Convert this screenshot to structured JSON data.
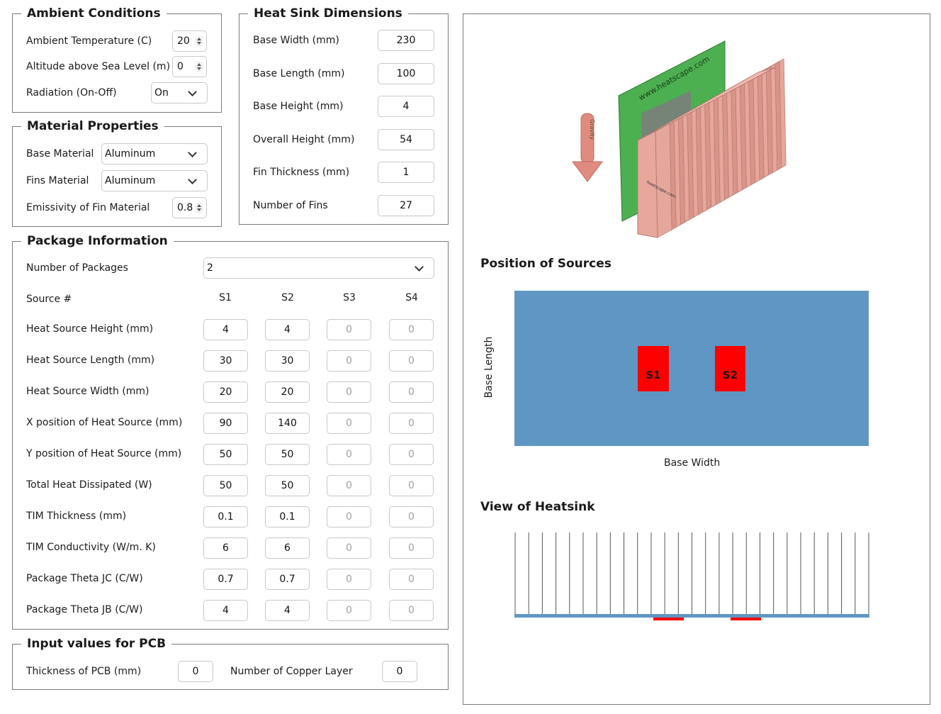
{
  "ambient": {
    "title": "Ambient Conditions",
    "temp_label": "Ambient Temperature (C)",
    "temp_value": "20",
    "altitude_label": "Altitude above Sea Level (m)",
    "altitude_value": "0",
    "radiation_label": "Radiation (On-Off)",
    "radiation_value": "On"
  },
  "material": {
    "title": "Material Properties",
    "base_label": "Base Material",
    "base_value": "Aluminum",
    "fins_label": "Fins Material",
    "fins_value": "Aluminum",
    "emissivity_label": "Emissivity of Fin Material",
    "emissivity_value": "0.8"
  },
  "heatsink": {
    "title": "Heat Sink Dimensions",
    "rows": [
      {
        "label": "Base Width (mm)",
        "value": "230"
      },
      {
        "label": "Base Length (mm)",
        "value": "100"
      },
      {
        "label": "Base Height (mm)",
        "value": "4"
      },
      {
        "label": "Overall Height (mm)",
        "value": "54"
      },
      {
        "label": "Fin Thickness (mm)",
        "value": "1"
      },
      {
        "label": "Number of Fins",
        "value": "27"
      }
    ]
  },
  "package": {
    "title": "Package Information",
    "count_label": "Number of Packages",
    "count_value": "2",
    "source_label": "Source #",
    "columns": [
      "S1",
      "S2",
      "S3",
      "S4"
    ],
    "rows": [
      {
        "label": "Heat Source Height (mm)",
        "values": [
          "4",
          "4",
          "0",
          "0"
        ]
      },
      {
        "label": "Heat Source Length (mm)",
        "values": [
          "30",
          "30",
          "0",
          "0"
        ]
      },
      {
        "label": "Heat Source Width (mm)",
        "values": [
          "20",
          "20",
          "0",
          "0"
        ]
      },
      {
        "label": "X position of Heat Source (mm)",
        "values": [
          "90",
          "140",
          "0",
          "0"
        ]
      },
      {
        "label": "Y position of Heat Source (mm)",
        "values": [
          "50",
          "50",
          "0",
          "0"
        ]
      },
      {
        "label": "Total Heat Dissipated (W)",
        "values": [
          "50",
          "50",
          "0",
          "0"
        ]
      },
      {
        "label": "TIM Thickness (mm)",
        "values": [
          "0.1",
          "0.1",
          "0",
          "0"
        ]
      },
      {
        "label": "TIM Conductivity (W/m. K)",
        "values": [
          "6",
          "6",
          "0",
          "0"
        ]
      },
      {
        "label": "Package Theta JC (C/W)",
        "values": [
          "0.7",
          "0.7",
          "0",
          "0"
        ]
      },
      {
        "label": "Package Theta JB (C/W)",
        "values": [
          "4",
          "4",
          "0",
          "0"
        ]
      }
    ]
  },
  "pcb": {
    "title": "Input values for PCB",
    "thickness_label": "Thickness of PCB (mm)",
    "thickness_value": "0",
    "copper_label": "Number of Copper Layer",
    "copper_value": "0"
  },
  "preview": {
    "watermark_top": "www.heatscape.com",
    "watermark_side": "heatscape.com",
    "gravity_label": "Gravity",
    "positions_title": "Position of Sources",
    "axis_y": "Base Length",
    "axis_x": "Base Width",
    "source_labels": [
      "S1",
      "S2"
    ],
    "view_title": "View of Heatsink",
    "colors": {
      "base": "#6096c4",
      "source": "#ff0000",
      "pcb": "#4caf50",
      "fins": "#d9948a"
    }
  }
}
